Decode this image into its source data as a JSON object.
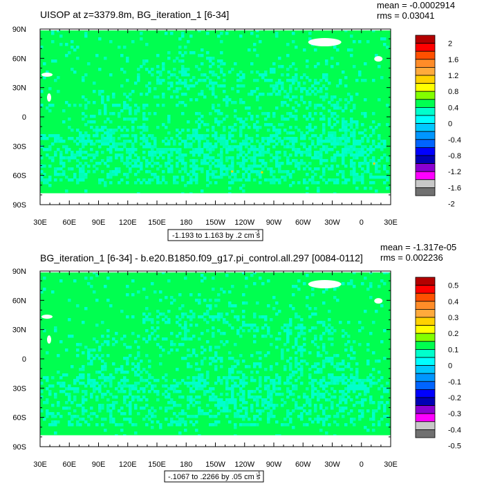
{
  "chart_data": [
    {
      "type": "heatmap",
      "title": "UISOP at z=3379.8m, BG_iteration_1 [6-34]",
      "stats": {
        "mean": "mean = -0.0002914",
        "rms": "rms = 0.03041"
      },
      "x_ticks": [
        "30E",
        "60E",
        "90E",
        "120E",
        "150E",
        "180",
        "150W",
        "120W",
        "90W",
        "60W",
        "30W",
        "0",
        "30E"
      ],
      "y_ticks": [
        "90N",
        "60N",
        "30N",
        "0",
        "30S",
        "60S",
        "90S"
      ],
      "contour_info": "-1.193 to 1.163 by .2 cm s",
      "contour_exponent": "-1",
      "colorbar_labels": [
        "2",
        "1.6",
        "1.2",
        "0.8",
        "0.4",
        "0",
        "-0.4",
        "-0.8",
        "-1.2",
        "-1.6",
        "-2"
      ],
      "field_colors": {
        "land": "#00ff50",
        "ocean_low": "#00ffcc",
        "ocean_mid": "#00ffb4",
        "missing": "#ffffff",
        "hot": "#ffd200"
      }
    },
    {
      "type": "heatmap",
      "title": "BG_iteration_1 [6-34] - b.e20.B1850.f09_g17.pi_control.all.297 [0084-0112]",
      "stats": {
        "mean": "mean = -1.317e-05",
        "rms": "rms = 0.002236"
      },
      "x_ticks": [
        "30E",
        "60E",
        "90E",
        "120E",
        "150E",
        "180",
        "150W",
        "120W",
        "90W",
        "60W",
        "30W",
        "0",
        "30E"
      ],
      "y_ticks": [
        "90N",
        "60N",
        "30N",
        "0",
        "30S",
        "60S",
        "90S"
      ],
      "contour_info": "-.1067 to .2266 by .05 cm s",
      "contour_exponent": "-1",
      "colorbar_labels": [
        "0.5",
        "0.4",
        "0.3",
        "0.2",
        "0.1",
        "0",
        "-0.1",
        "-0.2",
        "-0.3",
        "-0.4",
        "-0.5"
      ],
      "field_colors": {
        "land": "#00ff50",
        "ocean_low": "#00ffcc",
        "ocean_mid": "#00ffb4",
        "missing": "#ffffff",
        "hot": "#ffd200"
      }
    }
  ],
  "colorbar_colors": [
    "#b40000",
    "#ff0000",
    "#ff5000",
    "#ff8c28",
    "#ffaa3c",
    "#ffd200",
    "#ffff00",
    "#82ff00",
    "#00ff50",
    "#00ffcc",
    "#00ffff",
    "#00c8ff",
    "#0096ff",
    "#0064ff",
    "#0000ff",
    "#0000b4",
    "#8c00d2",
    "#ff00ff",
    "#c8c8c8",
    "#707070"
  ]
}
